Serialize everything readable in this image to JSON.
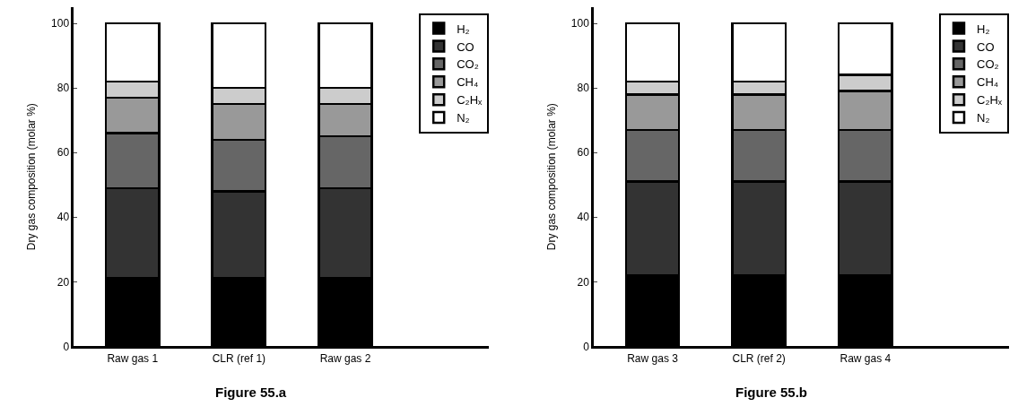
{
  "chart_data": [
    {
      "type": "bar",
      "stacked": true,
      "ylabel": "Dry gas composition (molar %)",
      "categories": [
        "Raw gas 1",
        "CLR (ref 1)",
        "Raw gas 2"
      ],
      "ylim": [
        0,
        105
      ],
      "yticks": [
        0,
        20,
        40,
        60,
        80,
        100
      ],
      "legend": "top right",
      "annotations": [
        "Figure 55.a"
      ],
      "series": [
        {
          "name": "H₂",
          "color": "#000000",
          "values": [
            21,
            21,
            21
          ]
        },
        {
          "name": "CO",
          "color": "#333333",
          "values": [
            28,
            27,
            28
          ]
        },
        {
          "name": "CO₂",
          "color": "#666666",
          "values": [
            17,
            16,
            16
          ]
        },
        {
          "name": "CH₄",
          "color": "#999999",
          "values": [
            11,
            11,
            10
          ]
        },
        {
          "name": "C₂Hₓ",
          "color": "#cccccc",
          "values": [
            5,
            5,
            5
          ]
        },
        {
          "name": "N₂",
          "color": "#ffffff",
          "values": [
            18,
            20,
            20
          ]
        }
      ]
    },
    {
      "type": "bar",
      "stacked": true,
      "ylabel": "Dry gas composition (molar %)",
      "categories": [
        "Raw gas 3",
        "CLR (ref 2)",
        "Raw gas 4"
      ],
      "ylim": [
        0,
        105
      ],
      "yticks": [
        0,
        20,
        40,
        60,
        80,
        100
      ],
      "legend": "top right",
      "annotations": [
        "Figure 55.b"
      ],
      "series": [
        {
          "name": "H₂",
          "color": "#000000",
          "values": [
            22,
            22,
            22
          ]
        },
        {
          "name": "CO",
          "color": "#333333",
          "values": [
            29,
            29,
            29
          ]
        },
        {
          "name": "CO₂",
          "color": "#666666",
          "values": [
            16,
            16,
            16
          ]
        },
        {
          "name": "CH₄",
          "color": "#999999",
          "values": [
            11,
            11,
            12
          ]
        },
        {
          "name": "C₂Hₓ",
          "color": "#cccccc",
          "values": [
            4,
            4,
            5
          ]
        },
        {
          "name": "N₂",
          "color": "#ffffff",
          "values": [
            18,
            18,
            16
          ]
        }
      ]
    }
  ]
}
